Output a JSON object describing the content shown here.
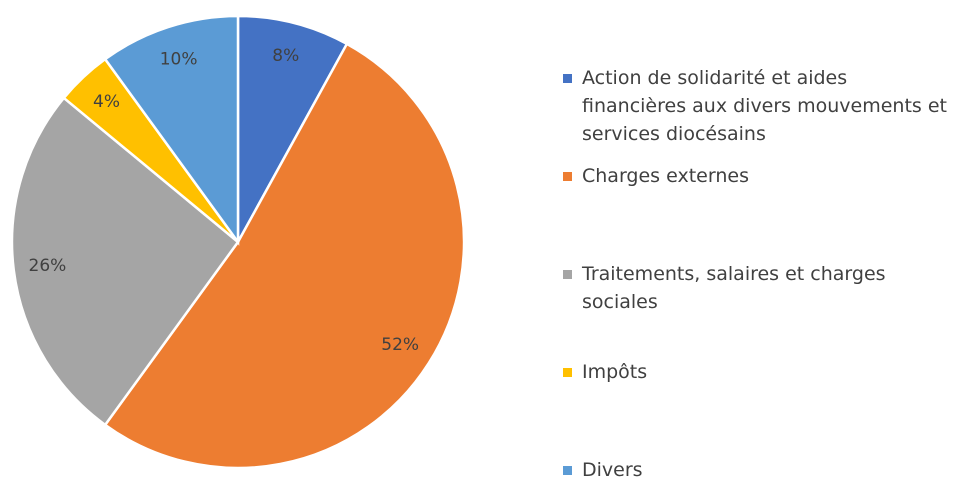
{
  "chart_data": {
    "type": "pie",
    "categories": [
      "Action de solidarité et aides financières aux divers mouvements et services diocésains",
      "Charges externes",
      "Traitements, salaires et charges sociales",
      "Impôts",
      "Divers"
    ],
    "values": [
      8,
      52,
      26,
      4,
      10
    ],
    "value_labels": [
      "8%",
      "52%",
      "26%",
      "4%",
      "10%"
    ],
    "colors": [
      "#4472c4",
      "#ed7d31",
      "#a5a5a5",
      "#ffc000",
      "#5b9bd5"
    ],
    "legend": "right"
  }
}
